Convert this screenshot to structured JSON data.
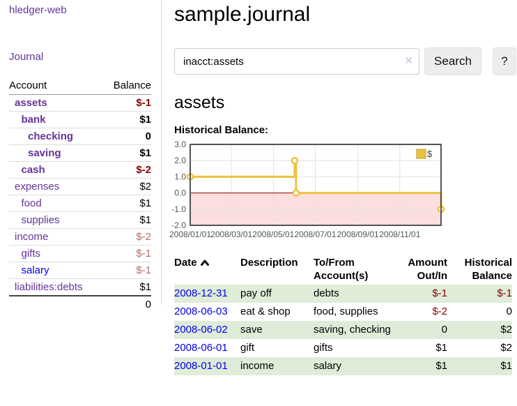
{
  "colors": {
    "link_purple": "#663399",
    "link_blue": "#0000ee",
    "negative_strong": "#880000",
    "negative_soft": "#b36b6b",
    "row_green": "#dfecd8"
  },
  "sidebar": {
    "app_title": "hledger-web",
    "journal_link": "Journal",
    "accounts_header": {
      "account": "Account",
      "balance": "Balance"
    },
    "accounts": [
      {
        "name": "assets",
        "balance": "$-1",
        "level": 0,
        "bold": true,
        "name_style": "purple",
        "balance_style": "neg"
      },
      {
        "name": "bank",
        "balance": "$1",
        "level": 1,
        "bold": true,
        "name_style": "purple",
        "balance_style": ""
      },
      {
        "name": "checking",
        "balance": "0",
        "level": 2,
        "bold": true,
        "name_style": "purple",
        "balance_style": ""
      },
      {
        "name": "saving",
        "balance": "$1",
        "level": 2,
        "bold": true,
        "name_style": "purple",
        "balance_style": ""
      },
      {
        "name": "cash",
        "balance": "$-2",
        "level": 1,
        "bold": true,
        "name_style": "purple",
        "balance_style": "neg"
      },
      {
        "name": "expenses",
        "balance": "$2",
        "level": 0,
        "bold": false,
        "name_style": "purple",
        "balance_style": ""
      },
      {
        "name": "food",
        "balance": "$1",
        "level": 1,
        "bold": false,
        "name_style": "purple",
        "balance_style": ""
      },
      {
        "name": "supplies",
        "balance": "$1",
        "level": 1,
        "bold": false,
        "name_style": "purple",
        "balance_style": ""
      },
      {
        "name": "income",
        "balance": "$-2",
        "level": 0,
        "bold": false,
        "name_style": "purple",
        "balance_style": "negsoft"
      },
      {
        "name": "gifts",
        "balance": "$-1",
        "level": 1,
        "bold": false,
        "name_style": "purple",
        "balance_style": "negsoft"
      },
      {
        "name": "salary",
        "balance": "$-1",
        "level": 1,
        "bold": false,
        "name_style": "blue",
        "balance_style": "negsoft"
      },
      {
        "name": "liabilities:debts",
        "balance": "$1",
        "level": 0,
        "bold": false,
        "name_style": "purple",
        "balance_style": ""
      }
    ],
    "total": "0"
  },
  "main": {
    "title": "sample.journal",
    "search": {
      "value": "inacct:assets",
      "clear_icon": "✕",
      "button": "Search",
      "help": "?"
    },
    "account_heading": "assets",
    "chart_label": "Historical Balance:"
  },
  "chart_data": {
    "type": "line",
    "step": true,
    "title": "Historical Balance:",
    "legend_label": "$",
    "legend_position": "top-right",
    "ylim": [
      -2,
      3
    ],
    "x_max_days": 365,
    "y_ticks": [
      "3.0",
      "2.0",
      "1.0",
      "0.0",
      "-1.0",
      "-2.0"
    ],
    "x_ticks": [
      {
        "label": "2008/01/01",
        "day": 0
      },
      {
        "label": "2008/03/01",
        "day": 60
      },
      {
        "label": "2008/05/01",
        "day": 121
      },
      {
        "label": "2008/07/01",
        "day": 182
      },
      {
        "label": "2008/09/01",
        "day": 244
      },
      {
        "label": "2008/11/01",
        "day": 305
      }
    ],
    "series": [
      {
        "name": "$",
        "points": [
          {
            "date": "2008-01-01",
            "day": 0,
            "value": 1
          },
          {
            "date": "2008-06-01",
            "day": 152,
            "value": 2
          },
          {
            "date": "2008-06-03",
            "day": 154,
            "value": 0
          },
          {
            "date": "2008-12-31",
            "day": 365,
            "value": -1
          }
        ]
      }
    ],
    "colors": {
      "line": "#edc240",
      "marker_fill": "#ffffff",
      "legend_border": "#bf9d2f",
      "negative_fill": "#fbdede",
      "zero_line": "#8b0000",
      "grid": "#e3e3e3",
      "border": "#545454",
      "tick_text": "#545454"
    }
  },
  "transactions": {
    "headers": {
      "date": "Date",
      "description": "Description",
      "accounts_1": "To/From",
      "accounts_2": "Account(s)",
      "amount_1": "Amount",
      "amount_2": "Out/In",
      "balance_1": "Historical",
      "balance_2": "Balance"
    },
    "rows": [
      {
        "date": "2008-12-31",
        "description": "pay off",
        "accounts": "debts",
        "amount": "$-1",
        "amount_neg": true,
        "balance": "$-1",
        "balance_neg": true
      },
      {
        "date": "2008-06-03",
        "description": "eat & shop",
        "accounts": "food, supplies",
        "amount": "$-2",
        "amount_neg": true,
        "balance": "0",
        "balance_neg": false
      },
      {
        "date": "2008-06-02",
        "description": "save",
        "accounts": "saving, checking",
        "amount": "0",
        "amount_neg": false,
        "balance": "$2",
        "balance_neg": false
      },
      {
        "date": "2008-06-01",
        "description": "gift",
        "accounts": "gifts",
        "amount": "$1",
        "amount_neg": false,
        "balance": "$2",
        "balance_neg": false
      },
      {
        "date": "2008-01-01",
        "description": "income",
        "accounts": "salary",
        "amount": "$1",
        "amount_neg": false,
        "balance": "$1",
        "balance_neg": false
      }
    ]
  }
}
